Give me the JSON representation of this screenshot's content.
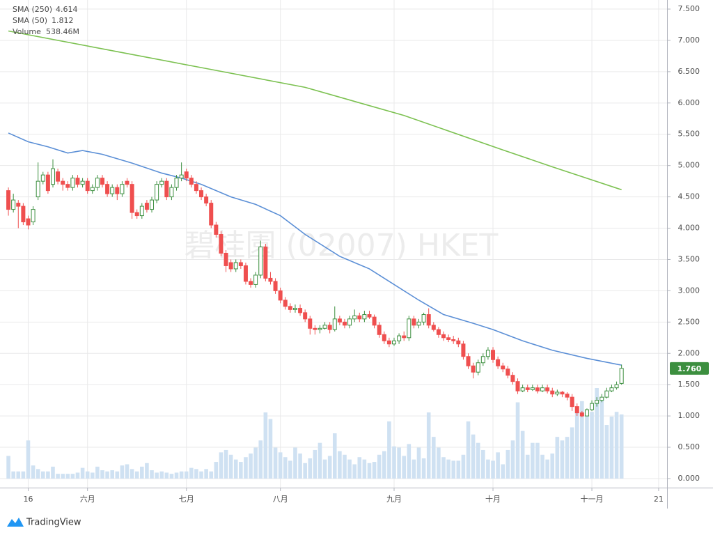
{
  "chart_data": {
    "type": "candlestick",
    "watermark": "碧桂園 (02007) HKET",
    "brand": "TradingView",
    "grid": true,
    "xlim": [
      -1.7,
      133.2
    ],
    "xticks": [
      {
        "value": 4,
        "label": "16"
      },
      {
        "value": 16,
        "label": "六月"
      },
      {
        "value": 36,
        "label": "七月"
      },
      {
        "value": 55,
        "label": "八月"
      },
      {
        "value": 78,
        "label": "九月"
      },
      {
        "value": 98,
        "label": "十月"
      },
      {
        "value": 118,
        "label": "十一月"
      },
      {
        "value": 131.5,
        "label": "21"
      }
    ],
    "ylim": [
      -0.145,
      7.645
    ],
    "yticks": [
      {
        "value": 0,
        "label": "0.000"
      },
      {
        "value": 0.5,
        "label": "0.500"
      },
      {
        "value": 1,
        "label": "1.000"
      },
      {
        "value": 1.5,
        "label": "1.500"
      },
      {
        "value": 2,
        "label": "2.000"
      },
      {
        "value": 2.5,
        "label": "2.500"
      },
      {
        "value": 3,
        "label": "3.000"
      },
      {
        "value": 3.5,
        "label": "3.500"
      },
      {
        "value": 4,
        "label": "4.000"
      },
      {
        "value": 4.5,
        "label": "4.500"
      },
      {
        "value": 5,
        "label": "5.000"
      },
      {
        "value": 5.5,
        "label": "5.500"
      },
      {
        "value": 6,
        "label": "6.000"
      },
      {
        "value": 6.5,
        "label": "6.500"
      },
      {
        "value": 7,
        "label": "7.000"
      },
      {
        "value": 7.5,
        "label": "7.500"
      }
    ],
    "candles": {
      "up_color": "#3c8f3f",
      "down_color": "#ef4f4f",
      "price_label": "1.760",
      "open": [
        4.6,
        4.3,
        4.4,
        4.35,
        4.15,
        4.1,
        4.5,
        4.75,
        4.85,
        4.7,
        4.9,
        4.75,
        4.7,
        4.65,
        4.8,
        4.7,
        4.75,
        4.6,
        4.65,
        4.8,
        4.7,
        4.55,
        4.65,
        4.55,
        4.75,
        4.7,
        4.25,
        4.2,
        4.4,
        4.3,
        4.45,
        4.7,
        4.75,
        4.5,
        4.65,
        4.8,
        4.9,
        4.8,
        4.7,
        4.6,
        4.5,
        4.4,
        4.05,
        3.9,
        3.6,
        3.45,
        3.35,
        3.45,
        3.4,
        3.15,
        3.1,
        3.25,
        3.7,
        3.2,
        3.15,
        3.0,
        2.85,
        2.75,
        2.7,
        2.72,
        2.65,
        2.55,
        2.4,
        2.38,
        2.4,
        2.45,
        2.38,
        2.55,
        2.5,
        2.45,
        2.55,
        2.6,
        2.55,
        2.62,
        2.58,
        2.45,
        2.3,
        2.2,
        2.15,
        2.2,
        2.28,
        2.25,
        2.55,
        2.45,
        2.5,
        2.62,
        2.45,
        2.38,
        2.3,
        2.25,
        2.22,
        2.2,
        2.15,
        1.95,
        1.8,
        1.7,
        1.85,
        1.95,
        2.05,
        1.9,
        1.8,
        1.75,
        1.65,
        1.55,
        1.4,
        1.45,
        1.42,
        1.45,
        1.4,
        1.45,
        1.4,
        1.35,
        1.38,
        1.35,
        1.3,
        1.15,
        1.05,
        1.0,
        1.1,
        1.2,
        1.25,
        1.3,
        1.4,
        1.45,
        1.52
      ],
      "high": [
        4.65,
        4.55,
        4.45,
        4.4,
        4.2,
        4.35,
        5.05,
        4.9,
        4.9,
        5.1,
        4.95,
        4.8,
        4.75,
        4.85,
        4.85,
        4.8,
        4.8,
        4.7,
        4.85,
        4.85,
        4.75,
        4.7,
        4.7,
        4.75,
        4.8,
        4.75,
        4.3,
        4.4,
        4.45,
        4.5,
        4.75,
        4.8,
        4.8,
        4.7,
        4.85,
        5.05,
        4.95,
        4.85,
        4.75,
        4.65,
        4.55,
        4.45,
        4.1,
        3.95,
        3.65,
        3.5,
        3.5,
        3.5,
        3.45,
        3.2,
        3.3,
        3.8,
        3.75,
        3.3,
        3.2,
        3.05,
        2.9,
        2.8,
        2.78,
        2.78,
        2.7,
        2.6,
        2.45,
        2.45,
        2.5,
        2.5,
        2.75,
        2.6,
        2.55,
        2.6,
        2.7,
        2.65,
        2.68,
        2.68,
        2.62,
        2.5,
        2.35,
        2.25,
        2.25,
        2.32,
        2.35,
        2.6,
        2.6,
        2.55,
        2.65,
        2.72,
        2.5,
        2.42,
        2.35,
        2.3,
        2.28,
        2.25,
        2.2,
        2.0,
        1.85,
        1.9,
        2.0,
        2.1,
        2.1,
        1.95,
        1.85,
        1.8,
        1.7,
        1.6,
        1.5,
        1.5,
        1.5,
        1.5,
        1.5,
        1.5,
        1.45,
        1.42,
        1.4,
        1.38,
        1.35,
        1.2,
        1.08,
        1.12,
        1.25,
        1.3,
        1.35,
        1.45,
        1.5,
        1.55,
        1.82
      ],
      "low": [
        4.2,
        4.25,
        4.0,
        4.05,
        3.98,
        4.05,
        4.45,
        4.7,
        4.55,
        4.65,
        4.7,
        4.6,
        4.6,
        4.6,
        4.65,
        4.65,
        4.55,
        4.55,
        4.6,
        4.65,
        4.5,
        4.5,
        4.45,
        4.5,
        4.65,
        4.15,
        4.15,
        4.15,
        4.25,
        4.25,
        4.4,
        4.65,
        4.45,
        4.45,
        4.6,
        4.75,
        4.75,
        4.65,
        4.55,
        4.45,
        4.35,
        4.0,
        3.85,
        3.55,
        3.3,
        3.3,
        3.3,
        3.35,
        3.1,
        3.05,
        3.05,
        3.2,
        3.15,
        3.1,
        2.95,
        2.8,
        2.7,
        2.65,
        2.65,
        2.6,
        2.5,
        2.3,
        2.3,
        2.32,
        2.38,
        2.32,
        2.35,
        2.45,
        2.4,
        2.4,
        2.5,
        2.5,
        2.5,
        2.55,
        2.4,
        2.25,
        2.15,
        2.1,
        2.12,
        2.15,
        2.2,
        2.2,
        2.4,
        2.4,
        2.45,
        2.4,
        2.35,
        2.25,
        2.2,
        2.18,
        2.15,
        2.1,
        1.9,
        1.75,
        1.6,
        1.65,
        1.8,
        1.9,
        1.85,
        1.75,
        1.7,
        1.6,
        1.5,
        1.35,
        1.38,
        1.38,
        1.4,
        1.36,
        1.38,
        1.36,
        1.3,
        1.32,
        1.3,
        1.25,
        1.08,
        1.0,
        0.98,
        1.0,
        1.08,
        1.15,
        1.22,
        1.28,
        1.38,
        1.42,
        1.5
      ],
      "close": [
        4.3,
        4.45,
        4.35,
        4.1,
        4.05,
        4.3,
        4.75,
        4.85,
        4.6,
        4.95,
        4.75,
        4.7,
        4.65,
        4.8,
        4.7,
        4.75,
        4.6,
        4.65,
        4.8,
        4.7,
        4.55,
        4.65,
        4.55,
        4.7,
        4.7,
        4.25,
        4.2,
        4.35,
        4.3,
        4.45,
        4.7,
        4.75,
        4.5,
        4.65,
        4.8,
        4.85,
        4.8,
        4.7,
        4.6,
        4.5,
        4.4,
        4.05,
        3.9,
        3.6,
        3.4,
        3.35,
        3.45,
        3.4,
        3.15,
        3.1,
        3.25,
        3.7,
        3.2,
        3.15,
        3.0,
        2.85,
        2.75,
        2.7,
        2.72,
        2.65,
        2.55,
        2.4,
        2.38,
        2.4,
        2.45,
        2.38,
        2.55,
        2.5,
        2.45,
        2.55,
        2.6,
        2.55,
        2.62,
        2.58,
        2.45,
        2.3,
        2.2,
        2.15,
        2.2,
        2.28,
        2.25,
        2.55,
        2.45,
        2.5,
        2.62,
        2.45,
        2.38,
        2.3,
        2.25,
        2.22,
        2.2,
        2.15,
        1.95,
        1.8,
        1.7,
        1.85,
        1.95,
        2.05,
        1.9,
        1.8,
        1.75,
        1.65,
        1.55,
        1.4,
        1.45,
        1.42,
        1.45,
        1.4,
        1.45,
        1.4,
        1.35,
        1.38,
        1.35,
        1.3,
        1.15,
        1.05,
        1.0,
        1.1,
        1.2,
        1.25,
        1.3,
        1.4,
        1.45,
        1.5,
        1.76
      ]
    },
    "volume": {
      "name": "Volume",
      "color": "#cfe1f2",
      "value_label": "538.46M",
      "values": [
        190,
        60,
        60,
        60,
        320,
        110,
        80,
        60,
        60,
        100,
        40,
        40,
        40,
        40,
        50,
        90,
        60,
        50,
        100,
        70,
        60,
        70,
        60,
        110,
        120,
        80,
        60,
        100,
        130,
        70,
        50,
        60,
        50,
        40,
        50,
        60,
        60,
        90,
        80,
        60,
        80,
        60,
        140,
        220,
        240,
        200,
        160,
        140,
        180,
        210,
        260,
        320,
        555,
        500,
        260,
        220,
        180,
        150,
        260,
        210,
        130,
        170,
        240,
        300,
        160,
        190,
        380,
        230,
        200,
        160,
        120,
        180,
        160,
        130,
        140,
        200,
        230,
        480,
        270,
        260,
        190,
        290,
        160,
        260,
        170,
        555,
        350,
        260,
        180,
        160,
        150,
        150,
        200,
        480,
        370,
        300,
        240,
        160,
        150,
        220,
        120,
        240,
        320,
        640,
        400,
        200,
        300,
        300,
        200,
        160,
        210,
        350,
        320,
        350,
        430,
        580,
        650,
        530,
        560,
        760,
        680,
        450,
        520,
        560,
        538.46
      ]
    },
    "series": [
      {
        "name": "SMA (250)",
        "color": "#7cc151",
        "x": [
          0,
          20,
          40,
          60,
          80,
          100,
          110,
          124
        ],
        "values": [
          7.15,
          6.85,
          6.55,
          6.25,
          5.8,
          5.25,
          4.98,
          4.614
        ]
      },
      {
        "name": "SMA (50)",
        "color": "#5b8fd6",
        "x": [
          0,
          4,
          8,
          12,
          15,
          19,
          25,
          31,
          35,
          39,
          45,
          50,
          55,
          60,
          67,
          73,
          77,
          83,
          88,
          94,
          98,
          104,
          110,
          117,
          124
        ],
        "values": [
          5.52,
          5.38,
          5.3,
          5.2,
          5.24,
          5.18,
          5.04,
          4.88,
          4.8,
          4.7,
          4.5,
          4.38,
          4.2,
          3.9,
          3.55,
          3.35,
          3.15,
          2.85,
          2.62,
          2.48,
          2.38,
          2.2,
          2.05,
          1.92,
          1.812
        ]
      }
    ]
  }
}
